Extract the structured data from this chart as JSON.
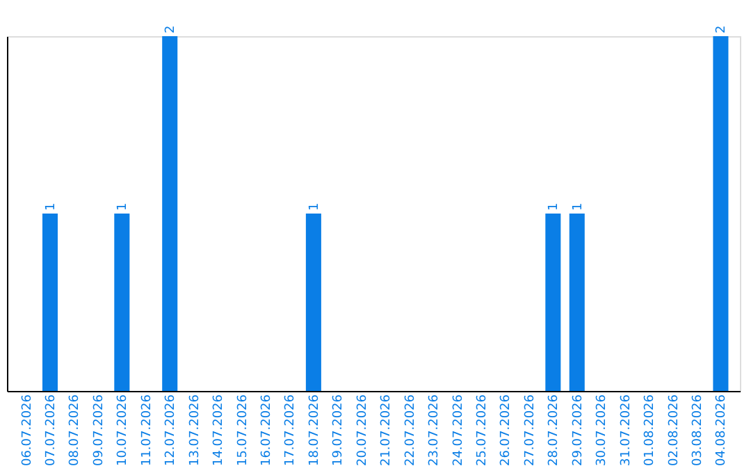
{
  "chart_data": {
    "type": "bar",
    "categories": [
      "06.07.2026",
      "07.07.2026",
      "08.07.2026",
      "09.07.2026",
      "10.07.2026",
      "11.07.2026",
      "12.07.2026",
      "13.07.2026",
      "14.07.2026",
      "15.07.2026",
      "16.07.2026",
      "17.07.2026",
      "18.07.2026",
      "19.07.2026",
      "20.07.2026",
      "21.07.2026",
      "22.07.2026",
      "23.07.2026",
      "24.07.2026",
      "25.07.2026",
      "26.07.2026",
      "27.07.2026",
      "28.07.2026",
      "29.07.2026",
      "30.07.2026",
      "31.07.2026",
      "01.08.2026",
      "02.08.2026",
      "03.08.2026",
      "04.08.2026"
    ],
    "values": [
      0,
      1,
      0,
      0,
      1,
      0,
      2,
      0,
      0,
      0,
      0,
      0,
      1,
      0,
      0,
      0,
      0,
      0,
      0,
      0,
      0,
      0,
      1,
      1,
      0,
      0,
      0,
      0,
      0,
      2
    ],
    "value_labels": [
      null,
      "1",
      null,
      null,
      "1",
      null,
      "2",
      null,
      null,
      null,
      null,
      null,
      "1",
      null,
      null,
      null,
      null,
      null,
      null,
      null,
      null,
      null,
      "1",
      "1",
      null,
      null,
      null,
      null,
      null,
      "2"
    ],
    "color": "#0a7ee6",
    "tick_labels": "x",
    "grid": false
  }
}
